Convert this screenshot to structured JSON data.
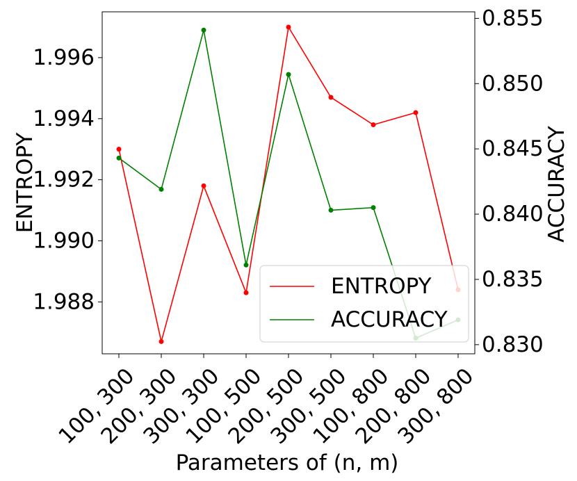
{
  "chart_data": {
    "type": "line",
    "title": "",
    "xlabel": "Parameters of (n, m)",
    "categories": [
      "100, 300",
      "200, 300",
      "300, 300",
      "100, 500",
      "200, 500",
      "300, 500",
      "100, 800",
      "200, 800",
      "300, 800"
    ],
    "y_left": {
      "label": "ENTROPY",
      "range": [
        1.9863,
        1.9975
      ],
      "ticks": [
        "1.988",
        "1.990",
        "1.992",
        "1.994",
        "1.996"
      ]
    },
    "y_right": {
      "label": "ACCURACY",
      "range": [
        0.8293,
        0.8555
      ],
      "ticks": [
        "0.830",
        "0.835",
        "0.840",
        "0.845",
        "0.850",
        "0.855"
      ]
    },
    "series": [
      {
        "name": "ENTROPY",
        "axis": "left",
        "color": "#ff0000",
        "values": [
          1.993,
          1.9867,
          1.9918,
          1.9883,
          1.997,
          1.9947,
          1.9938,
          1.9942,
          1.9884
        ]
      },
      {
        "name": "ACCURACY",
        "axis": "right",
        "color": "#008000",
        "values": [
          0.8443,
          0.8419,
          0.8541,
          0.8361,
          0.8507,
          0.8403,
          0.8405,
          0.8305,
          0.8319
        ]
      }
    ],
    "legend_position": "lower-right",
    "grid": false
  }
}
